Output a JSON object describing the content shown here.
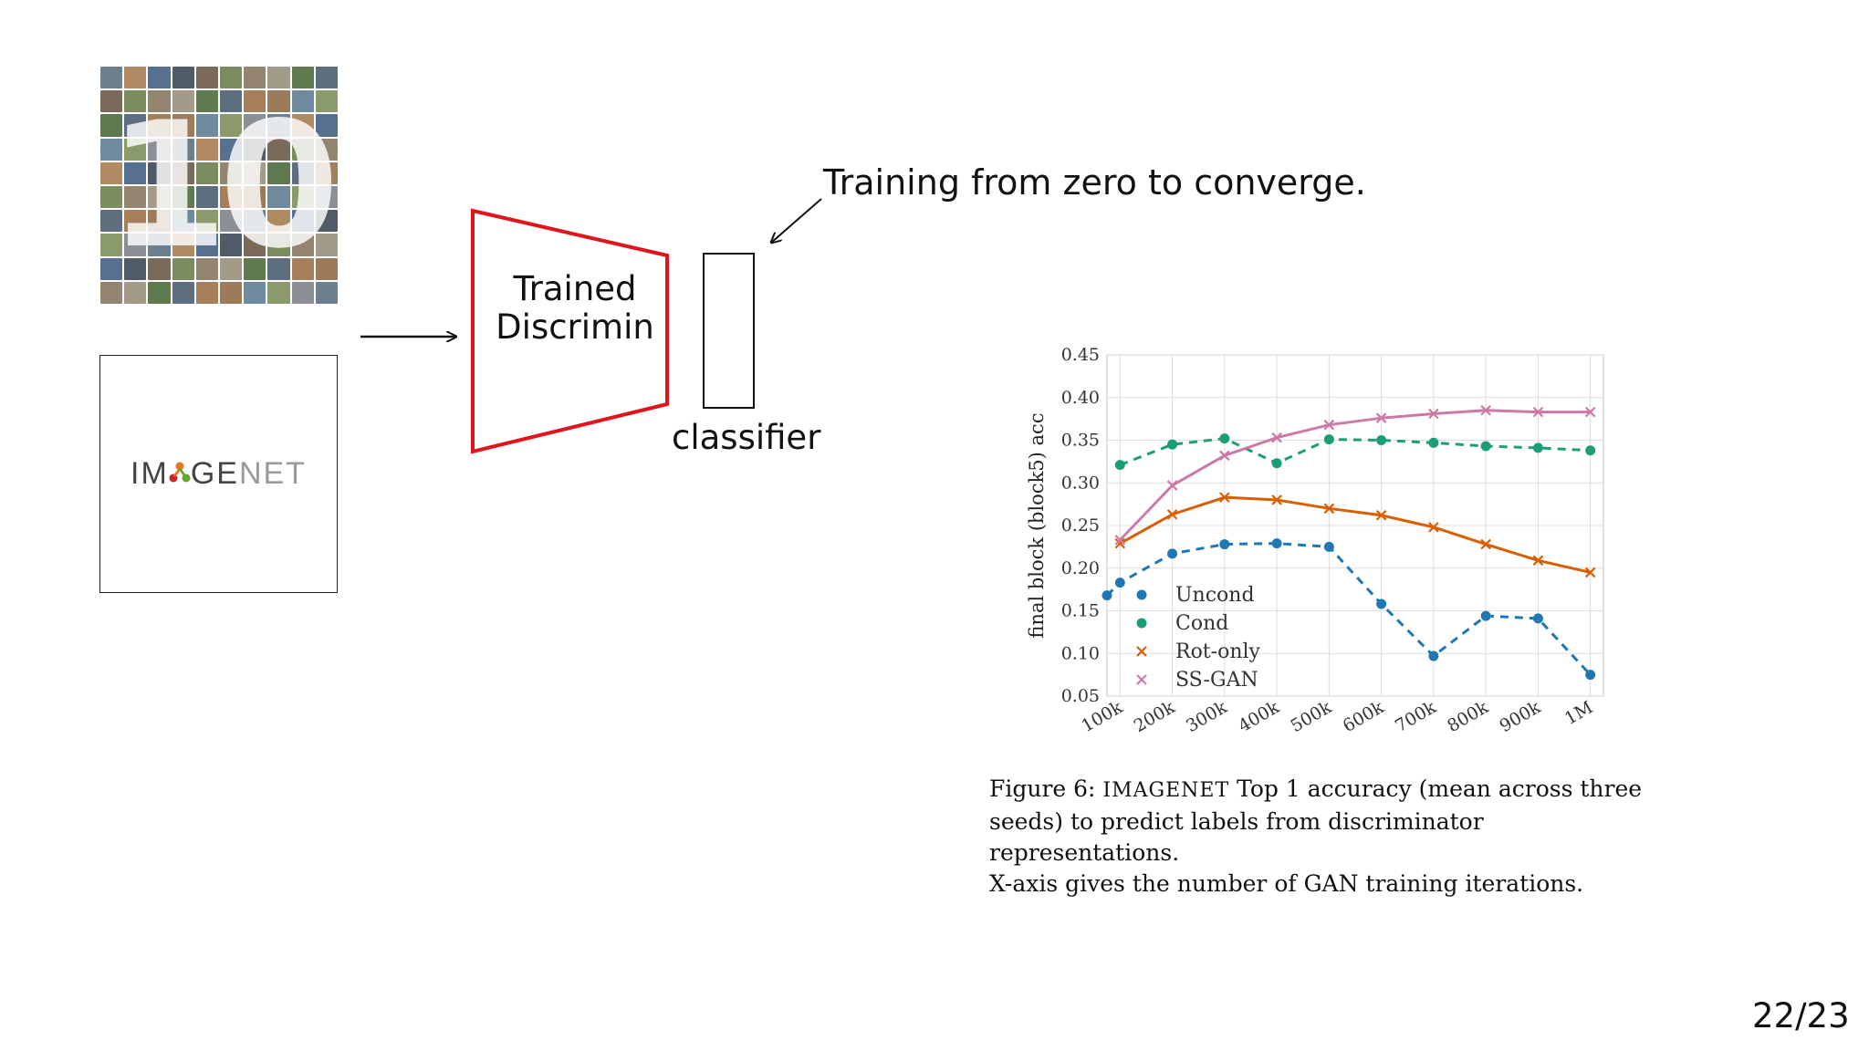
{
  "slide": {
    "discriminator_label_line1": "Trained",
    "discriminator_label_line2": "Discrimin",
    "classifier_label": "classifier",
    "training_note": "Training from zero to converge.",
    "page_number": "22/23",
    "cifar_number": "10",
    "imagenet_logo": {
      "part1": "IM",
      "part2": "GE",
      "part3": "NET"
    }
  },
  "colors": {
    "discriminator_outline": "#e0151b",
    "uncond": "#1f77b4",
    "cond": "#1b9e77",
    "rot_only": "#d95f02",
    "ss_gan": "#cc79a7",
    "logo_orange": "#e8761c",
    "logo_red": "#c9252d",
    "logo_green": "#69a82f"
  },
  "caption": {
    "figure_label": "Figure 6:",
    "dataset_name": "IMAGENET",
    "text_line1_rest": "Top 1 accuracy (mean across three",
    "text_line2": "seeds) to predict labels from discriminator representations.",
    "text_line3": "X-axis gives the number of GAN training iterations."
  },
  "chart_data": {
    "type": "line",
    "ylabel": "final block (block5) acc",
    "xlabel": "",
    "categories": [
      "100k",
      "200k",
      "300k",
      "400k",
      "500k",
      "600k",
      "700k",
      "800k",
      "900k",
      "1M"
    ],
    "ylim": [
      0.05,
      0.45
    ],
    "yticks": [
      "0.05",
      "0.10",
      "0.15",
      "0.20",
      "0.25",
      "0.30",
      "0.35",
      "0.40",
      "0.45"
    ],
    "grid": true,
    "legend_position": "lower-left",
    "series": [
      {
        "name": "Uncond",
        "marker": "dot",
        "line": "dashed",
        "x": [
          "75k",
          "100k",
          "200k",
          "300k",
          "400k",
          "500k",
          "600k",
          "700k",
          "800k",
          "900k",
          "1M"
        ],
        "x_pos": [
          0.75,
          1,
          2,
          3,
          4,
          5,
          6,
          7,
          8,
          9,
          10
        ],
        "values": [
          0.168,
          0.183,
          0.217,
          0.228,
          0.229,
          0.225,
          0.158,
          0.097,
          0.144,
          0.141,
          0.075
        ]
      },
      {
        "name": "Cond",
        "marker": "dot",
        "line": "dashed",
        "x": [
          "100k",
          "200k",
          "300k",
          "400k",
          "500k",
          "600k",
          "700k",
          "800k",
          "900k",
          "1M"
        ],
        "x_pos": [
          1,
          2,
          3,
          4,
          5,
          6,
          7,
          8,
          9,
          10
        ],
        "values": [
          0.321,
          0.345,
          0.352,
          0.323,
          0.351,
          0.35,
          0.347,
          0.343,
          0.341,
          0.338
        ]
      },
      {
        "name": "Rot-only",
        "marker": "x",
        "line": "solid",
        "x": [
          "100k",
          "200k",
          "300k",
          "400k",
          "500k",
          "600k",
          "700k",
          "800k",
          "900k",
          "1M"
        ],
        "x_pos": [
          1,
          2,
          3,
          4,
          5,
          6,
          7,
          8,
          9,
          10
        ],
        "values": [
          0.229,
          0.263,
          0.283,
          0.28,
          0.27,
          0.262,
          0.248,
          0.228,
          0.209,
          0.195
        ]
      },
      {
        "name": "SS-GAN",
        "marker": "x",
        "line": "solid",
        "x": [
          "100k",
          "200k",
          "300k",
          "400k",
          "500k",
          "600k",
          "700k",
          "800k",
          "900k",
          "1M"
        ],
        "x_pos": [
          1,
          2,
          3,
          4,
          5,
          6,
          7,
          8,
          9,
          10
        ],
        "values": [
          0.233,
          0.297,
          0.332,
          0.353,
          0.368,
          0.376,
          0.381,
          0.385,
          0.383,
          0.383
        ]
      }
    ]
  }
}
